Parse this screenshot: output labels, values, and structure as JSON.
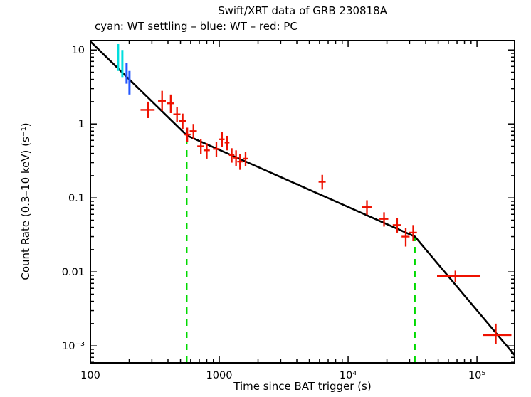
{
  "page": {
    "background": "#ffffff"
  },
  "chart_data": {
    "type": "scatter",
    "title": "Swift/XRT data of GRB 230818A",
    "legend_line": "cyan: WT settling – blue: WT – red: PC",
    "xlabel": "Time since BAT trigger (s)",
    "ylabel": "Count Rate (0.3–10 keV) (s⁻¹)",
    "xscale": "log",
    "yscale": "log",
    "xlim": [
      100,
      196000
    ],
    "ylim": [
      0.00059,
      13.4
    ],
    "grid": false,
    "x_ticks": [
      {
        "v": 100,
        "label": "100"
      },
      {
        "v": 1000,
        "label": "1000"
      },
      {
        "v": 10000,
        "label": "10⁴"
      },
      {
        "v": 100000,
        "label": "10⁵"
      }
    ],
    "y_ticks": [
      {
        "v": 10,
        "label": "10"
      },
      {
        "v": 1,
        "label": "1"
      },
      {
        "v": 0.1,
        "label": "0.1"
      },
      {
        "v": 0.01,
        "label": "0.01"
      },
      {
        "v": 0.001,
        "label": "10⁻³"
      }
    ],
    "colors": {
      "wt_settling": "#00dede",
      "wt": "#2457ff",
      "pc": "#ee1100",
      "fit": "#000000",
      "break_line": "#00d900",
      "axis": "#000000"
    },
    "fit_line": {
      "breaks": [
        560,
        33000
      ],
      "points": [
        [
          100,
          13
        ],
        [
          560,
          0.7
        ],
        [
          33000,
          0.03
        ],
        [
          196000,
          0.00075
        ]
      ]
    },
    "break_lines": [
      {
        "x": 560,
        "y_top": 0.7
      },
      {
        "x": 33000,
        "y_top": 0.03
      }
    ],
    "series": [
      {
        "name": "WT settling",
        "color_key": "wt_settling",
        "points": [
          {
            "x": 164,
            "y": 8.0,
            "xerr": [
              0,
              0
            ],
            "yerr": [
              2.8,
              4.0
            ]
          },
          {
            "x": 177,
            "y": 6.7,
            "xerr": [
              0,
              0
            ],
            "yerr": [
              2.4,
              3.3
            ]
          }
        ]
      },
      {
        "name": "WT",
        "color_key": "wt",
        "points": [
          {
            "x": 191,
            "y": 5.2,
            "xerr": [
              0,
              0
            ],
            "yerr": [
              1.7,
              1.5
            ]
          },
          {
            "x": 201,
            "y": 3.7,
            "xerr": [
              0,
              0
            ],
            "yerr": [
              1.2,
              1.5
            ]
          }
        ]
      },
      {
        "name": "PC",
        "color_key": "pc",
        "points": [
          {
            "x": 280,
            "y": 1.55,
            "xerr": [
              35,
              35
            ],
            "yerr": [
              0.35,
              0.45
            ]
          },
          {
            "x": 360,
            "y": 2.05,
            "xerr": [
              25,
              25
            ],
            "yerr": [
              0.55,
              0.75
            ]
          },
          {
            "x": 420,
            "y": 1.9,
            "xerr": [
              25,
              25
            ],
            "yerr": [
              0.5,
              0.6
            ]
          },
          {
            "x": 470,
            "y": 1.35,
            "xerr": [
              30,
              30
            ],
            "yerr": [
              0.3,
              0.35
            ]
          },
          {
            "x": 520,
            "y": 1.1,
            "xerr": [
              30,
              30
            ],
            "yerr": [
              0.25,
              0.28
            ]
          },
          {
            "x": 565,
            "y": 0.72,
            "xerr": [
              35,
              35
            ],
            "yerr": [
              0.15,
              0.17
            ]
          },
          {
            "x": 630,
            "y": 0.8,
            "xerr": [
              40,
              40
            ],
            "yerr": [
              0.17,
              0.2
            ]
          },
          {
            "x": 720,
            "y": 0.5,
            "xerr": [
              45,
              45
            ],
            "yerr": [
              0.11,
              0.12
            ]
          },
          {
            "x": 800,
            "y": 0.44,
            "xerr": [
              45,
              45
            ],
            "yerr": [
              0.1,
              0.11
            ]
          },
          {
            "x": 950,
            "y": 0.46,
            "xerr": [
              55,
              55
            ],
            "yerr": [
              0.1,
              0.11
            ]
          },
          {
            "x": 1050,
            "y": 0.62,
            "xerr": [
              50,
              50
            ],
            "yerr": [
              0.13,
              0.15
            ]
          },
          {
            "x": 1150,
            "y": 0.56,
            "xerr": [
              50,
              50
            ],
            "yerr": [
              0.12,
              0.13
            ]
          },
          {
            "x": 1250,
            "y": 0.38,
            "xerr": [
              60,
              60
            ],
            "yerr": [
              0.08,
              0.09
            ]
          },
          {
            "x": 1350,
            "y": 0.35,
            "xerr": [
              60,
              60
            ],
            "yerr": [
              0.08,
              0.09
            ]
          },
          {
            "x": 1450,
            "y": 0.31,
            "xerr": [
              70,
              70
            ],
            "yerr": [
              0.07,
              0.08
            ]
          },
          {
            "x": 1600,
            "y": 0.34,
            "xerr": [
              80,
              80
            ],
            "yerr": [
              0.07,
              0.08
            ]
          },
          {
            "x": 6300,
            "y": 0.165,
            "xerr": [
              400,
              400
            ],
            "yerr": [
              0.035,
              0.04
            ]
          },
          {
            "x": 14000,
            "y": 0.075,
            "xerr": [
              1200,
              1200
            ],
            "yerr": [
              0.016,
              0.018
            ]
          },
          {
            "x": 19000,
            "y": 0.052,
            "xerr": [
              1500,
              1500
            ],
            "yerr": [
              0.011,
              0.012
            ]
          },
          {
            "x": 24000,
            "y": 0.043,
            "xerr": [
              1800,
              1800
            ],
            "yerr": [
              0.009,
              0.01
            ]
          },
          {
            "x": 28000,
            "y": 0.03,
            "xerr": [
              2000,
              2000
            ],
            "yerr": [
              0.008,
              0.009
            ]
          },
          {
            "x": 32000,
            "y": 0.034,
            "xerr": [
              2200,
              2200
            ],
            "yerr": [
              0.008,
              0.009
            ]
          },
          {
            "x": 68000,
            "y": 0.0088,
            "xerr": [
              19000,
              38000
            ],
            "yerr": [
              0.0015,
              0.0016
            ]
          },
          {
            "x": 140000,
            "y": 0.0014,
            "xerr": [
              28000,
              45000
            ],
            "yerr": [
              0.00035,
              0.0006
            ]
          }
        ]
      }
    ]
  }
}
